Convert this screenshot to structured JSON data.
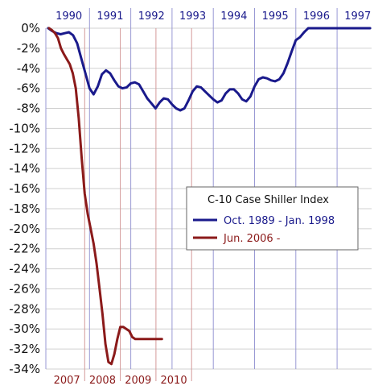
{
  "chart_data": {
    "type": "line",
    "title": "C-10 Case Shiller Index",
    "xlabel": "",
    "ylabel": "",
    "ylim": [
      -34,
      0
    ],
    "y_ticks": [
      "0%",
      "-2%",
      "-4%",
      "-6%",
      "-8%",
      "-10%",
      "-12%",
      "-14%",
      "-16%",
      "-18%",
      "-20%",
      "-22%",
      "-24%",
      "-26%",
      "-28%",
      "-30%",
      "-32%",
      "-34%"
    ],
    "grid": true,
    "legend": "right",
    "top_axis": {
      "labels": [
        "1990",
        "1991",
        "1992",
        "1993",
        "1994",
        "1995",
        "1996",
        "1997"
      ],
      "color": "#1a1a8c"
    },
    "bottom_axis": {
      "labels": [
        "2007",
        "2008",
        "2009",
        "2010"
      ],
      "color": "#8b1a1a"
    },
    "series": [
      {
        "name": "Oct. 1989 - Jan. 1998",
        "color": "#1a1a8c",
        "axis": "top",
        "x": [
          0.0,
          0.1,
          0.2,
          0.3,
          0.4,
          0.5,
          0.6,
          0.7,
          0.8,
          0.9,
          1.0,
          1.1,
          1.2,
          1.3,
          1.4,
          1.5,
          1.6,
          1.7,
          1.8,
          1.9,
          2.0,
          2.1,
          2.2,
          2.3,
          2.4,
          2.5,
          2.6,
          2.7,
          2.8,
          2.9,
          3.0,
          3.1,
          3.2,
          3.3,
          3.4,
          3.5,
          3.6,
          3.7,
          3.8,
          3.9,
          4.0,
          4.1,
          4.2,
          4.3,
          4.4,
          4.5,
          4.6,
          4.7,
          4.8,
          4.9,
          5.0,
          5.1,
          5.2,
          5.3,
          5.4,
          5.5,
          5.6,
          5.7,
          5.8,
          5.9,
          6.0,
          6.1,
          6.2,
          6.3,
          6.4,
          6.5,
          6.6,
          6.7,
          6.8,
          6.9,
          7.0,
          7.1,
          7.2,
          7.3,
          7.4,
          7.5,
          7.6,
          7.7,
          7.8,
          7.9,
          8.0
        ],
        "values": [
          0.0,
          -0.3,
          -0.5,
          -0.6,
          -0.5,
          -0.4,
          -0.7,
          -1.5,
          -3.0,
          -4.5,
          -6.0,
          -6.6,
          -5.8,
          -4.6,
          -4.2,
          -4.5,
          -5.2,
          -5.8,
          -6.0,
          -5.9,
          -5.5,
          -5.4,
          -5.6,
          -6.3,
          -7.0,
          -7.5,
          -8.0,
          -7.4,
          -7.0,
          -7.1,
          -7.6,
          -8.0,
          -8.2,
          -8.0,
          -7.2,
          -6.3,
          -5.8,
          -5.9,
          -6.3,
          -6.7,
          -7.1,
          -7.4,
          -7.2,
          -6.5,
          -6.1,
          -6.1,
          -6.5,
          -7.1,
          -7.3,
          -6.8,
          -5.8,
          -5.1,
          -4.9,
          -5.0,
          -5.2,
          -5.3,
          -5.1,
          -4.5,
          -3.5,
          -2.3,
          -1.2,
          -0.9,
          -0.4,
          0.1,
          0.4,
          0.6,
          0.8,
          0.9,
          1.0,
          1.1,
          1.2,
          1.3,
          1.4,
          1.5,
          1.6,
          1.7,
          1.8,
          1.9,
          2.0,
          2.1,
          2.2
        ]
      },
      {
        "name": "Jun. 2006 -",
        "color": "#8b1a1a",
        "axis": "bottom",
        "x": [
          0.0,
          0.083,
          0.167,
          0.25,
          0.333,
          0.417,
          0.5,
          0.583,
          0.667,
          0.75,
          0.833,
          0.917,
          1.0,
          1.083,
          1.167,
          1.25,
          1.333,
          1.417,
          1.5,
          1.583,
          1.667,
          1.75,
          1.833,
          1.917,
          2.0,
          2.083,
          2.167,
          2.25,
          2.333,
          2.417,
          2.5,
          2.583,
          2.667,
          2.75,
          2.833,
          2.917,
          3.0,
          3.083,
          3.167
        ],
        "values": [
          0.0,
          -0.2,
          -0.5,
          -1.0,
          -2.0,
          -2.6,
          -3.1,
          -3.6,
          -4.5,
          -6.0,
          -9.0,
          -13.0,
          -16.5,
          -18.5,
          -20.0,
          -21.5,
          -23.5,
          -26.0,
          -28.5,
          -31.5,
          -33.3,
          -33.5,
          -32.5,
          -31.0,
          -29.8,
          -29.8,
          -30.0,
          -30.2,
          -30.8,
          -31.0,
          -31.0,
          -31.0,
          -31.0,
          -31.0,
          -31.0,
          -31.0,
          -31.0,
          -31.0,
          -31.0
        ]
      }
    ]
  }
}
